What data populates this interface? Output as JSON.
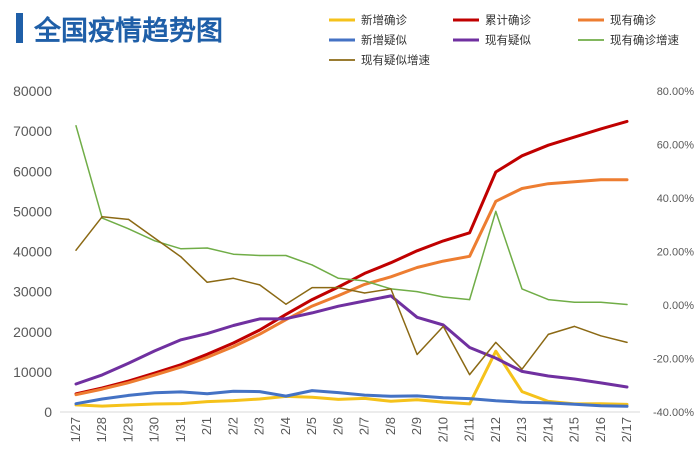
{
  "chart_data": {
    "type": "line",
    "title": "全国疫情趋势图",
    "colors": {
      "title_bar": "#1f5fa8",
      "title_text": "#1f5fa8"
    },
    "categories": [
      "1/27",
      "1/28",
      "1/29",
      "1/30",
      "1/31",
      "2/1",
      "2/2",
      "2/3",
      "2/4",
      "2/5",
      "2/6",
      "2/7",
      "2/8",
      "2/9",
      "2/10",
      "2/11",
      "2/12",
      "2/13",
      "2/14",
      "2/15",
      "2/16",
      "2/17"
    ],
    "left_axis": {
      "ylim": [
        0,
        80000
      ],
      "ticks": [
        0,
        10000,
        20000,
        30000,
        40000,
        50000,
        60000,
        70000,
        80000
      ],
      "tick_labels": [
        "0",
        "10000",
        "20000",
        "30000",
        "40000",
        "50000",
        "60000",
        "70000",
        "80000"
      ]
    },
    "right_axis": {
      "ylim": [
        -40,
        80
      ],
      "ticks": [
        -40,
        -20,
        0,
        20,
        40,
        60,
        80
      ],
      "tick_labels": [
        "-40.00%",
        "-20.00%",
        "0.00%",
        "20.00%",
        "40.00%",
        "60.00%",
        "80.00%"
      ]
    },
    "series": [
      {
        "name": "新增确诊",
        "color": "#f5c21b",
        "width": 3,
        "axis": "left",
        "values": [
          1771,
          1459,
          1737,
          1982,
          2102,
          2590,
          2829,
          3235,
          3887,
          3694,
          3143,
          3399,
          2656,
          3062,
          2478,
          2015,
          15152,
          5090,
          2641,
          2009,
          2048,
          1886
        ]
      },
      {
        "name": "累计确诊",
        "color": "#c00000",
        "width": 3,
        "axis": "left",
        "values": [
          4515,
          5974,
          7711,
          9692,
          11791,
          14380,
          17205,
          20438,
          24324,
          28018,
          31161,
          34546,
          37198,
          40171,
          42638,
          44653,
          59804,
          63851,
          66492,
          68500,
          70548,
          72436
        ]
      },
      {
        "name": "现有确诊",
        "color": "#ed7d31",
        "width": 3,
        "axis": "left",
        "values": [
          4300,
          5700,
          7300,
          9200,
          11200,
          13600,
          16300,
          19400,
          23000,
          26400,
          29000,
          31800,
          33700,
          36000,
          37600,
          38800,
          52500,
          55700,
          56900,
          57400,
          57900,
          57900
        ]
      },
      {
        "name": "新增疑似",
        "color": "#4472c4",
        "width": 3,
        "axis": "left",
        "values": [
          2077,
          3248,
          4148,
          4812,
          5019,
          4562,
          5173,
          5072,
          3971,
          5328,
          4833,
          4214,
          3916,
          4008,
          3536,
          3342,
          2807,
          2450,
          2277,
          1918,
          1563,
          1432
        ]
      },
      {
        "name": "现有疑似",
        "color": "#7030a0",
        "width": 3,
        "axis": "left",
        "values": [
          6973,
          9239,
          12167,
          15238,
          17988,
          19544,
          21558,
          23214,
          23260,
          24702,
          26359,
          27657,
          28942,
          23589,
          21675,
          16067,
          13435,
          10109,
          8969,
          8228,
          7264,
          6242
        ]
      },
      {
        "name": "现有确诊增速",
        "color": "#70ad47",
        "width": 1.5,
        "axis": "right",
        "values": [
          67,
          32.5,
          28.5,
          24,
          21,
          21.3,
          19,
          18.5,
          18.5,
          15,
          10,
          9,
          6,
          5,
          3,
          2,
          35,
          6,
          2,
          1,
          1,
          0.2
        ]
      },
      {
        "name": "现有疑似增速",
        "color": "#8b6914",
        "width": 1.5,
        "axis": "right",
        "values": [
          20.5,
          33,
          32,
          25,
          18,
          8.5,
          10,
          7.5,
          0.3,
          6.5,
          6.5,
          4.5,
          6,
          -18.5,
          -8,
          -26,
          -14,
          -24,
          -11,
          -8,
          -11.5,
          -14
        ]
      }
    ],
    "legend_position": "top-right",
    "grid": false,
    "xlabel": "",
    "ylabel": ""
  }
}
